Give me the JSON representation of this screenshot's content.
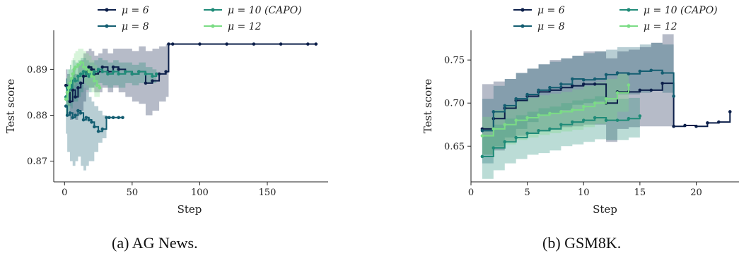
{
  "captions": {
    "a": "(a) AG News.",
    "b": "(b) GSM8K."
  },
  "colors": {
    "mu6": "#0c1f4a",
    "mu8": "#135d71",
    "mu10": "#1f8b78",
    "mu12": "#7bdc85"
  },
  "chart_data": [
    {
      "type": "line",
      "subplot": "a",
      "xlabel": "Step",
      "ylabel": "Test score",
      "xlim": [
        -8,
        195
      ],
      "ylim": [
        0.8655,
        0.8985
      ],
      "xticks": [
        0,
        50,
        100,
        150
      ],
      "xtick_labels": [
        "0",
        "50",
        "100",
        "150"
      ],
      "yticks": [
        0.87,
        0.88,
        0.89
      ],
      "ytick_labels": [
        "0.87",
        "0.88",
        "0.89"
      ],
      "legend": {
        "placement": "top-center"
      },
      "series": [
        {
          "name": "μ = 6",
          "color": "#0c1f4a",
          "x": [
            1,
            2,
            4,
            6,
            8,
            10,
            12,
            14,
            16,
            18,
            20,
            22,
            25,
            28,
            32,
            36,
            40,
            45,
            50,
            55,
            60,
            65,
            70,
            75,
            77,
            80,
            100,
            120,
            140,
            160,
            180,
            186
          ],
          "y": [
            0.8865,
            0.885,
            0.883,
            0.8855,
            0.884,
            0.886,
            0.887,
            0.8885,
            0.8895,
            0.8905,
            0.89,
            0.889,
            0.8895,
            0.8905,
            0.8895,
            0.8905,
            0.89,
            0.8895,
            0.889,
            0.8895,
            0.887,
            0.8875,
            0.889,
            0.8895,
            0.8955,
            0.8955,
            0.8955,
            0.8955,
            0.8955,
            0.8955,
            0.8955,
            0.8955
          ],
          "band_lo": [
            0.883,
            0.882,
            0.879,
            0.88,
            0.879,
            0.88,
            0.881,
            0.883,
            0.885,
            0.886,
            0.886,
            0.885,
            0.885,
            0.886,
            0.885,
            0.886,
            0.885,
            0.884,
            0.883,
            0.8825,
            0.88,
            0.881,
            0.883,
            0.884,
            0.8955,
            0.8955,
            0.8955,
            0.8955,
            0.8955,
            0.8955,
            0.8955,
            0.8955
          ],
          "band_hi": [
            0.89,
            0.889,
            0.888,
            0.89,
            0.889,
            0.891,
            0.892,
            0.8935,
            0.894,
            0.8945,
            0.894,
            0.893,
            0.8935,
            0.8945,
            0.8935,
            0.8945,
            0.8945,
            0.8945,
            0.894,
            0.895,
            0.894,
            0.8945,
            0.895,
            0.8955,
            0.8955,
            0.8955,
            0.8955,
            0.8955,
            0.8955,
            0.8955,
            0.8955,
            0.8955
          ]
        },
        {
          "name": "μ = 8",
          "color": "#135d71",
          "x": [
            1,
            2,
            4,
            6,
            8,
            10,
            12,
            14,
            16,
            18,
            20,
            22,
            25,
            28,
            31,
            33,
            36,
            40,
            43
          ],
          "y": [
            0.882,
            0.88,
            0.8805,
            0.8795,
            0.88,
            0.881,
            0.8805,
            0.879,
            0.8795,
            0.879,
            0.8785,
            0.8775,
            0.8765,
            0.877,
            0.8795,
            0.8795,
            0.8795,
            0.8795,
            0.8795
          ],
          "band_lo": [
            0.876,
            0.872,
            0.87,
            0.869,
            0.87,
            0.871,
            0.869,
            0.868,
            0.869,
            0.87,
            0.87,
            0.872,
            0.874,
            0.875,
            0.8795,
            0.8795,
            0.8795,
            0.8795,
            0.8795
          ],
          "band_hi": [
            0.888,
            0.887,
            0.888,
            0.889,
            0.888,
            0.8875,
            0.887,
            0.886,
            0.885,
            0.884,
            0.883,
            0.882,
            0.881,
            0.88,
            0.8795,
            0.8795,
            0.8795,
            0.8795,
            0.8795
          ]
        },
        {
          "name": "μ = 10 (CAPO)",
          "color": "#1f8b78",
          "x": [
            1,
            2,
            3,
            4,
            5,
            6,
            8,
            10,
            12,
            14,
            16,
            18,
            20,
            22,
            25,
            28,
            32,
            36,
            40,
            45,
            50,
            55,
            60,
            65,
            68
          ],
          "y": [
            0.884,
            0.886,
            0.8855,
            0.887,
            0.886,
            0.888,
            0.8875,
            0.8885,
            0.889,
            0.8895,
            0.889,
            0.8885,
            0.889,
            0.8895,
            0.89,
            0.8895,
            0.889,
            0.8895,
            0.889,
            0.8895,
            0.889,
            0.8895,
            0.889,
            0.8885,
            0.889
          ],
          "band_lo": [
            0.88,
            0.881,
            0.88,
            0.882,
            0.8815,
            0.883,
            0.883,
            0.884,
            0.885,
            0.886,
            0.8855,
            0.885,
            0.886,
            0.8865,
            0.887,
            0.8865,
            0.886,
            0.8865,
            0.886,
            0.887,
            0.8865,
            0.887,
            0.887,
            0.887,
            0.888
          ],
          "band_hi": [
            0.888,
            0.89,
            0.89,
            0.891,
            0.89,
            0.892,
            0.8915,
            0.892,
            0.8925,
            0.8925,
            0.892,
            0.8915,
            0.8915,
            0.892,
            0.8925,
            0.892,
            0.8915,
            0.892,
            0.8915,
            0.8915,
            0.891,
            0.8915,
            0.8905,
            0.89,
            0.89
          ]
        },
        {
          "name": "μ = 12",
          "color": "#7bdc85",
          "x": [
            1,
            2,
            3,
            4,
            5,
            6,
            7,
            8,
            10,
            12,
            14,
            16,
            18,
            20,
            22,
            24,
            26
          ],
          "y": [
            0.8835,
            0.885,
            0.886,
            0.887,
            0.888,
            0.889,
            0.89,
            0.8905,
            0.891,
            0.8915,
            0.8905,
            0.89,
            0.8895,
            0.8885,
            0.8875,
            0.8865,
            0.886
          ],
          "band_lo": [
            0.88,
            0.8815,
            0.882,
            0.883,
            0.884,
            0.8855,
            0.8865,
            0.887,
            0.8875,
            0.888,
            0.887,
            0.8865,
            0.886,
            0.885,
            0.884,
            0.884,
            0.884
          ],
          "band_hi": [
            0.887,
            0.8885,
            0.89,
            0.891,
            0.892,
            0.8925,
            0.8935,
            0.894,
            0.8945,
            0.8945,
            0.894,
            0.8935,
            0.893,
            0.892,
            0.891,
            0.889,
            0.888
          ]
        }
      ]
    },
    {
      "type": "line",
      "subplot": "b",
      "xlabel": "Step",
      "ylabel": "Test score",
      "xlim": [
        0,
        23.8
      ],
      "ylim": [
        0.6085,
        0.7845
      ],
      "xticks": [
        0,
        5,
        10,
        15,
        20
      ],
      "xtick_labels": [
        "0",
        "5",
        "10",
        "15",
        "20"
      ],
      "yticks": [
        0.65,
        0.7,
        0.75
      ],
      "ytick_labels": [
        "0.65",
        "0.70",
        "0.75"
      ],
      "legend": {
        "placement": "top-center"
      },
      "series": [
        {
          "name": "μ = 6",
          "color": "#0c1f4a",
          "x": [
            1,
            2,
            3,
            4,
            5,
            6,
            7,
            8,
            9,
            10,
            11,
            12,
            13,
            14,
            15,
            16,
            17,
            18,
            19,
            20,
            21,
            22,
            23
          ],
          "y": [
            0.67,
            0.682,
            0.694,
            0.703,
            0.708,
            0.713,
            0.715,
            0.718,
            0.72,
            0.722,
            0.722,
            0.7,
            0.713,
            0.713,
            0.715,
            0.715,
            0.723,
            0.673,
            0.674,
            0.673,
            0.677,
            0.678,
            0.69
          ],
          "band_lo": [
            0.64,
            0.645,
            0.655,
            0.662,
            0.665,
            0.668,
            0.67,
            0.672,
            0.673,
            0.675,
            0.675,
            0.655,
            0.67,
            0.672,
            0.673,
            0.673,
            0.673,
            0.673,
            0.674,
            0.673,
            0.677,
            0.678,
            0.69
          ],
          "band_hi": [
            0.722,
            0.725,
            0.728,
            0.735,
            0.74,
            0.745,
            0.75,
            0.752,
            0.755,
            0.76,
            0.76,
            0.752,
            0.76,
            0.762,
            0.765,
            0.77,
            0.78,
            0.673,
            0.674,
            0.673,
            0.677,
            0.678,
            0.69
          ]
        },
        {
          "name": "μ = 8",
          "color": "#135d71",
          "x": [
            1,
            2,
            3,
            4,
            5,
            6,
            7,
            8,
            9,
            10,
            11,
            12,
            13,
            14,
            15,
            16,
            17,
            18
          ],
          "y": [
            0.668,
            0.69,
            0.697,
            0.705,
            0.71,
            0.715,
            0.718,
            0.722,
            0.728,
            0.727,
            0.728,
            0.733,
            0.735,
            0.734,
            0.737,
            0.738,
            0.735,
            0.708
          ],
          "band_lo": [
            0.63,
            0.65,
            0.66,
            0.67,
            0.678,
            0.685,
            0.688,
            0.692,
            0.698,
            0.7,
            0.702,
            0.705,
            0.71,
            0.71,
            0.712,
            0.715,
            0.712,
            0.7
          ],
          "band_hi": [
            0.705,
            0.72,
            0.728,
            0.735,
            0.74,
            0.745,
            0.748,
            0.752,
            0.755,
            0.758,
            0.76,
            0.762,
            0.765,
            0.765,
            0.768,
            0.77,
            0.768,
            0.716
          ]
        },
        {
          "name": "μ = 10 (CAPO)",
          "color": "#1f8b78",
          "x": [
            1,
            2,
            3,
            4,
            5,
            6,
            7,
            8,
            9,
            10,
            11,
            12,
            13,
            14,
            15
          ],
          "y": [
            0.638,
            0.648,
            0.655,
            0.66,
            0.665,
            0.668,
            0.67,
            0.675,
            0.678,
            0.68,
            0.683,
            0.68,
            0.68,
            0.682,
            0.685
          ],
          "band_lo": [
            0.612,
            0.622,
            0.63,
            0.635,
            0.64,
            0.642,
            0.645,
            0.65,
            0.652,
            0.655,
            0.658,
            0.657,
            0.657,
            0.66,
            0.662
          ],
          "band_hi": [
            0.663,
            0.675,
            0.682,
            0.686,
            0.69,
            0.694,
            0.696,
            0.7,
            0.703,
            0.705,
            0.708,
            0.705,
            0.705,
            0.706,
            0.708
          ]
        },
        {
          "name": "μ = 12",
          "color": "#7bdc85",
          "x": [
            1,
            2,
            3,
            4,
            5,
            6,
            7,
            8,
            9,
            10,
            11,
            12,
            13,
            14
          ],
          "y": [
            0.662,
            0.67,
            0.675,
            0.68,
            0.683,
            0.686,
            0.688,
            0.69,
            0.692,
            0.696,
            0.7,
            0.705,
            0.712,
            0.721
          ],
          "band_lo": [
            0.64,
            0.648,
            0.652,
            0.657,
            0.66,
            0.663,
            0.665,
            0.667,
            0.669,
            0.672,
            0.676,
            0.68,
            0.69,
            0.705
          ],
          "band_hi": [
            0.684,
            0.692,
            0.698,
            0.703,
            0.706,
            0.709,
            0.711,
            0.713,
            0.716,
            0.72,
            0.724,
            0.728,
            0.734,
            0.737
          ]
        }
      ]
    }
  ]
}
